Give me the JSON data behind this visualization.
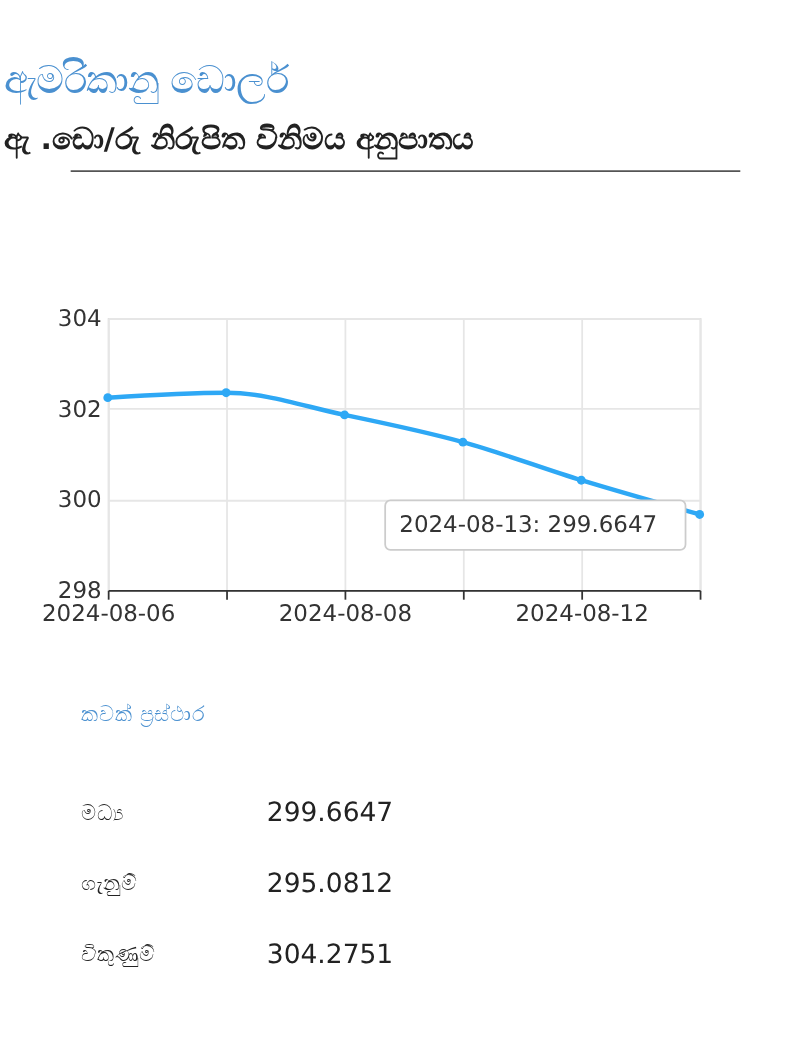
{
  "chart_data": {
    "type": "line",
    "title": "ඇමරිකානු ඩොලර්",
    "subtitle": "ඇ .ඩො/රු නිරුපිත විනිමය අනුපාතය",
    "categories": [
      "2024-08-06",
      null,
      "2024-08-08",
      null,
      "2024-08-12",
      null
    ],
    "series": [
      {
        "color": "#2ea8f5",
        "values": [
          302.24,
          302.35,
          301.86,
          301.26,
          300.42,
          299.6647
        ]
      }
    ],
    "ylim": [
      298,
      304
    ],
    "yticks": [
      298,
      300,
      302,
      304
    ],
    "grid": true,
    "marker": "circle",
    "line_style": "solid",
    "annotations": [
      "2024-08-13: 299.6647",
      "කවක් ප්‍රස්ථාර",
      "මධ්‍ය",
      "299.6647",
      "ගැනුම්",
      "295.0812",
      "විකුණුම්",
      "304.2751"
    ]
  }
}
